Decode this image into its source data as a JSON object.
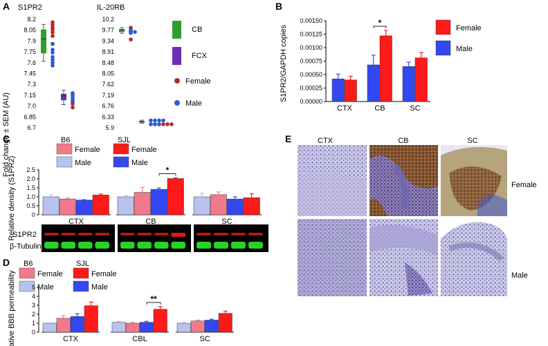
{
  "colors": {
    "female": "#ff1a1a",
    "male": "#3348f0",
    "b6_female": "#f07a8c",
    "b6_male": "#b8c2ee",
    "cb_box": "#2f9e2f",
    "fcx_box": "#6a2fb5",
    "dot_female": "#b52828",
    "dot_male": "#2a5ad8"
  },
  "panel_letters": [
    "A",
    "B",
    "C",
    "D",
    "E"
  ],
  "chart_data": [
    {
      "panel": "A",
      "type": "scatter",
      "ylabel": "Fold change ± SEM (AU)",
      "subplots": [
        {
          "title": "S1PR2",
          "ytick_labels": [
            "8.2",
            "8.05",
            "7.9",
            "7.75",
            "7.6",
            "7.45",
            "7.3",
            "7.15",
            "7.0",
            "6.85",
            "6.7"
          ],
          "ylim": [
            6.7,
            8.2
          ],
          "groups": [
            {
              "name": "CB",
              "box": {
                "low": 7.62,
                "q1": 7.73,
                "median": 7.93,
                "q3": 8.06,
                "high": 8.13
              },
              "female": [
                8.16,
                8.13,
                8.09,
                8.06,
                8.02,
                7.97,
                7.86
              ],
              "male": [
                7.86,
                7.78,
                7.74,
                7.68,
                7.64,
                7.6,
                7.56
              ]
            },
            {
              "name": "FCX",
              "box": {
                "low": 7.02,
                "q1": 7.08,
                "median": 7.14,
                "q3": 7.17,
                "high": 7.22
              },
              "female": [
                7.17,
                7.05,
                7.03,
                6.98
              ],
              "male": [
                7.18,
                7.15,
                7.12,
                7.09,
                7.07
              ]
            }
          ]
        },
        {
          "title": "IL-20RB",
          "ytick_labels": [
            "10.2",
            "9.77",
            "9.34",
            "8.91",
            "8.48",
            "8.05",
            "7.62",
            "7.19",
            "6.76",
            "6.33",
            "5.9"
          ],
          "ylim": [
            5.9,
            10.2
          ],
          "groups": [
            {
              "name": "CB",
              "box": {
                "low": 9.65,
                "q1": 9.7,
                "median": 9.77,
                "q3": 9.82,
                "high": 9.87
              },
              "female": [
                9.87,
                9.84,
                9.4
              ],
              "male": [
                9.77,
                9.74,
                9.72,
                9.7,
                9.68,
                9.66
              ]
            },
            {
              "name": "FCX",
              "box": {
                "low": 6.08,
                "q1": 6.11,
                "median": 6.14,
                "q3": 6.17,
                "high": 6.2
              },
              "female": [
                6.04,
                6.04,
                6.04,
                6.04,
                6.04,
                6.04
              ],
              "male": [
                6.19,
                6.19,
                6.19,
                6.19,
                6.04,
                6.04,
                6.04
              ]
            }
          ]
        }
      ],
      "legend": [
        "CB",
        "FCX",
        "Female",
        "Male"
      ]
    },
    {
      "panel": "B",
      "type": "bar",
      "ylabel": "S1PR2/GAPDH copies",
      "categories": [
        "CTX",
        "CB",
        "SC"
      ],
      "ytick_labels": [
        "0.00150",
        "0.00125",
        "0.00100",
        "0.00075",
        "0.00050",
        "0.00025",
        "0.00000"
      ],
      "ylim": [
        0,
        0.0015
      ],
      "series": [
        {
          "name": "Male",
          "values": [
            0.00042,
            0.00068,
            0.00065
          ],
          "errors": [
            9e-05,
            0.00018,
            8e-05
          ]
        },
        {
          "name": "Female",
          "values": [
            0.0004,
            0.00122,
            0.00081
          ],
          "errors": [
            7e-05,
            0.0001,
            0.0001
          ]
        }
      ],
      "significance": [
        {
          "category": "CB",
          "label": "*"
        }
      ],
      "legend": [
        "Female",
        "Male"
      ]
    },
    {
      "panel": "C",
      "type": "bar",
      "ylabel": "Relative density (S1PR2)",
      "categories": [
        "CTX",
        "CB",
        "SC"
      ],
      "ytick_labels": [
        "2.5",
        "2.0",
        "1.5",
        "1.0",
        "0.5",
        "0"
      ],
      "ylim": [
        0,
        2.5
      ],
      "group_labels": [
        "B6",
        "SJL"
      ],
      "series": [
        {
          "name": "B6 Male",
          "values": [
            1.0,
            1.0,
            1.0
          ],
          "errors": [
            0.1,
            0.08,
            0.2
          ]
        },
        {
          "name": "B6 Female",
          "values": [
            0.88,
            1.25,
            1.12
          ],
          "errors": [
            0.06,
            0.27,
            0.15
          ]
        },
        {
          "name": "SJL Male",
          "values": [
            0.82,
            1.42,
            0.88
          ],
          "errors": [
            0.02,
            0.07,
            0.12
          ]
        },
        {
          "name": "SJL Female",
          "values": [
            1.1,
            2.02,
            0.95
          ],
          "errors": [
            0.06,
            0.04,
            0.22
          ]
        }
      ],
      "legend_labels": [
        "Female",
        "Male"
      ],
      "significance": [
        {
          "category": "CB",
          "label": "*"
        }
      ],
      "blot_labels": [
        "S1PR2",
        "β-Tubulin"
      ]
    },
    {
      "panel": "D",
      "type": "bar",
      "ylabel": "Relative BBB permeability",
      "categories": [
        "CTX",
        "CBL",
        "SC"
      ],
      "ytick_labels": [
        "5",
        "4",
        "3",
        "2",
        "1",
        "0"
      ],
      "ylim": [
        0,
        5
      ],
      "group_labels": [
        "B6",
        "SJL"
      ],
      "series": [
        {
          "name": "B6 Male",
          "values": [
            1.0,
            1.1,
            1.0
          ],
          "errors": [
            0.05,
            0.1,
            0.1
          ]
        },
        {
          "name": "B6 Female",
          "values": [
            1.55,
            1.0,
            1.25
          ],
          "errors": [
            0.3,
            0.1,
            0.1
          ]
        },
        {
          "name": "SJL Male",
          "values": [
            1.75,
            1.1,
            1.35
          ],
          "errors": [
            0.3,
            0.1,
            0.1
          ]
        },
        {
          "name": "SJL Female",
          "values": [
            2.95,
            2.55,
            2.1
          ],
          "errors": [
            0.4,
            0.3,
            0.25
          ]
        }
      ],
      "legend_labels": [
        "Female",
        "Male"
      ],
      "significance": [
        {
          "category": "CBL",
          "label": "**"
        }
      ]
    }
  ],
  "panel_e": {
    "columns": [
      "CTX",
      "CB",
      "SC"
    ],
    "rows": [
      "Female",
      "Male"
    ]
  }
}
